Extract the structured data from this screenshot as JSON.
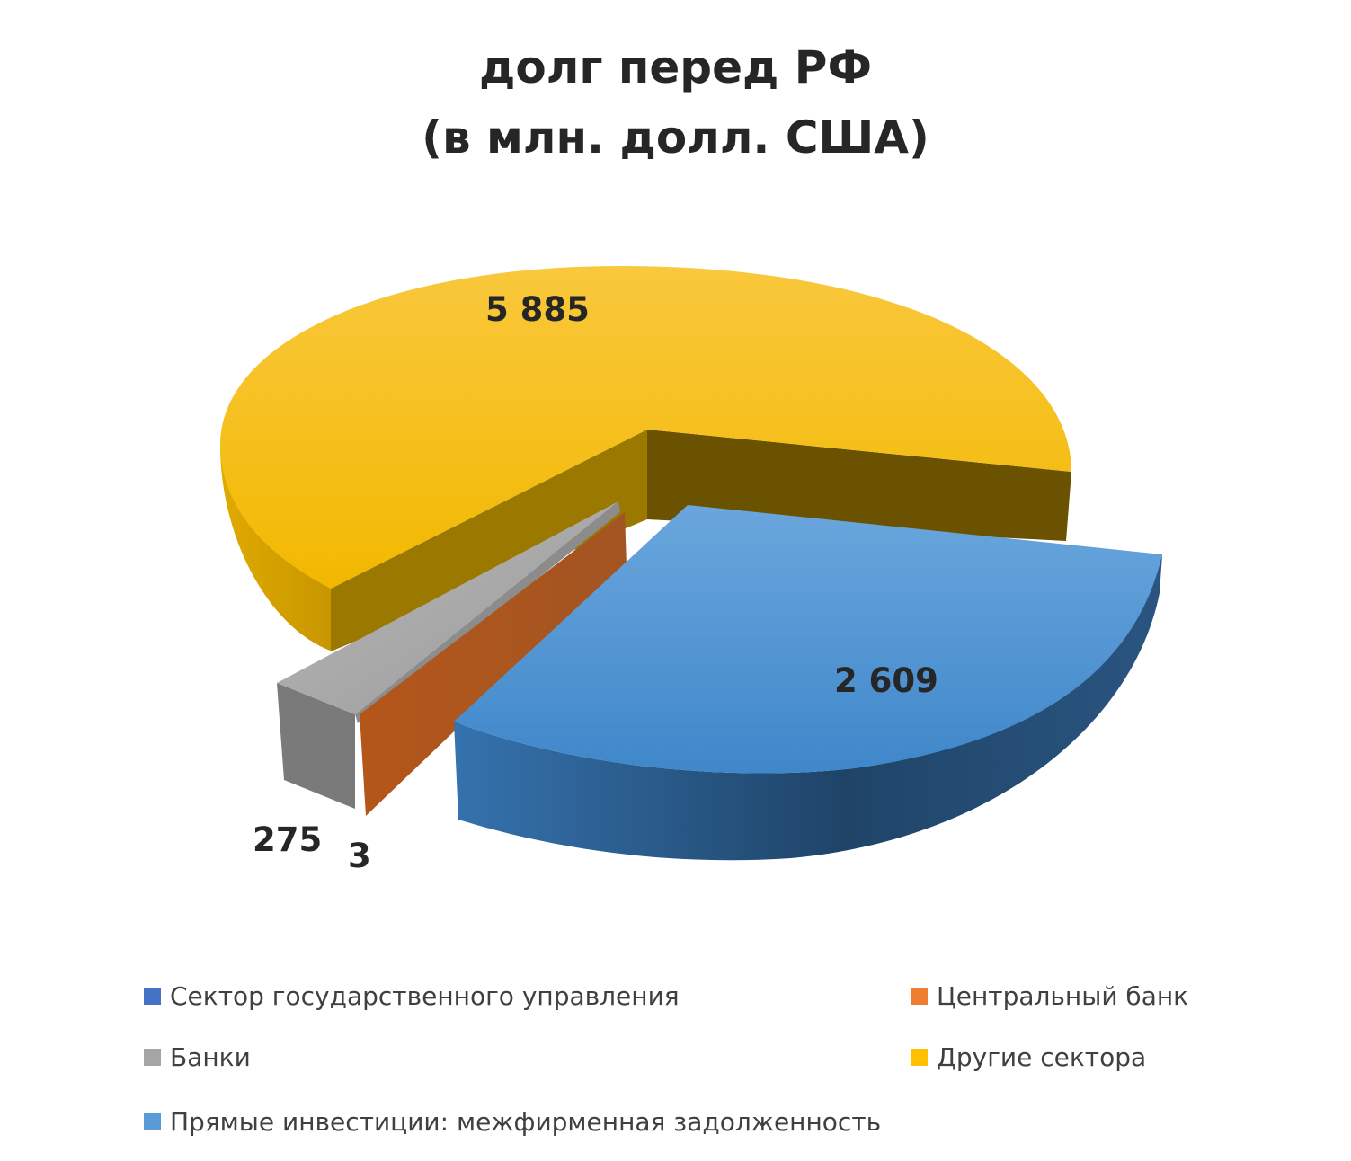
{
  "chart_data": {
    "type": "pie",
    "title": "долг перед РФ",
    "subtitle": "(в млн. долл. США)",
    "style": "3d-exploded",
    "categories": [
      "Сектор государственного управления",
      "Центральный банк",
      "Банки",
      "Другие сектора",
      "Прямые инвестиции: межфирменная задолженность"
    ],
    "values": [
      0,
      3,
      275,
      5885,
      2609
    ],
    "data_labels": [
      "",
      "3",
      "275",
      "5 885",
      "2 609"
    ],
    "colors": [
      "#4472C4",
      "#ED7D31",
      "#A5A5A5",
      "#FFC000",
      "#5B9BD5"
    ],
    "legend_position": "bottom"
  }
}
